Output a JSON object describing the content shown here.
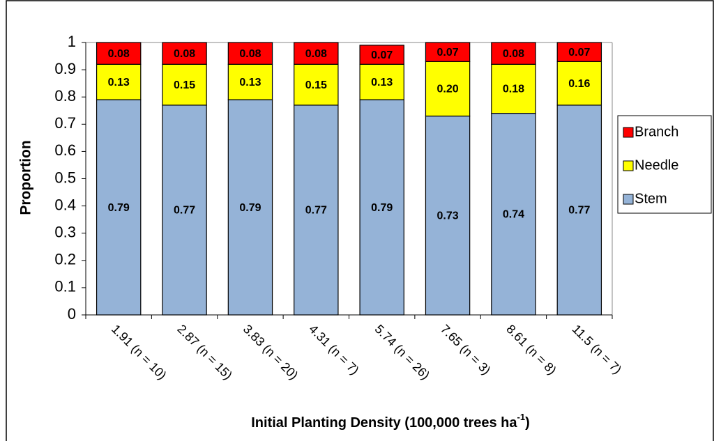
{
  "chart_data": {
    "type": "stacked_bar",
    "y_label": "Proportion",
    "x_label": "Initial Planting Density (100,000 trees ha",
    "x_label_sup": "-1",
    "x_label_end": ")",
    "categories": [
      "1.91 (n = 10)",
      "2.87 (n = 15)",
      "3.83 (n = 20)",
      "4.31 (n = 7)",
      "5.74 (n = 26)",
      "7.65 (n = 3)",
      "8.61 (n = 8)",
      "11.5 (n = 7)"
    ],
    "series": [
      {
        "name": "Stem",
        "color": "#95b3d7",
        "values": [
          0.79,
          0.77,
          0.79,
          0.77,
          0.79,
          0.73,
          0.74,
          0.77
        ]
      },
      {
        "name": "Needle",
        "color": "#ffff00",
        "values": [
          0.13,
          0.15,
          0.13,
          0.15,
          0.13,
          0.2,
          0.18,
          0.16
        ],
        "value_labels": [
          "0.13",
          "0.15",
          "0.13",
          "0.15",
          "0.13",
          "0.20",
          "0.18",
          "0.16"
        ]
      },
      {
        "name": "Branch",
        "color": "#ff0000",
        "values": [
          0.08,
          0.08,
          0.08,
          0.08,
          0.07,
          0.07,
          0.08,
          0.07
        ]
      }
    ],
    "ylim": [
      0,
      1
    ],
    "yticks": [
      0,
      0.1,
      0.2,
      0.3,
      0.4,
      0.5,
      0.6,
      0.7,
      0.8,
      0.9,
      1
    ],
    "legend": "right"
  }
}
